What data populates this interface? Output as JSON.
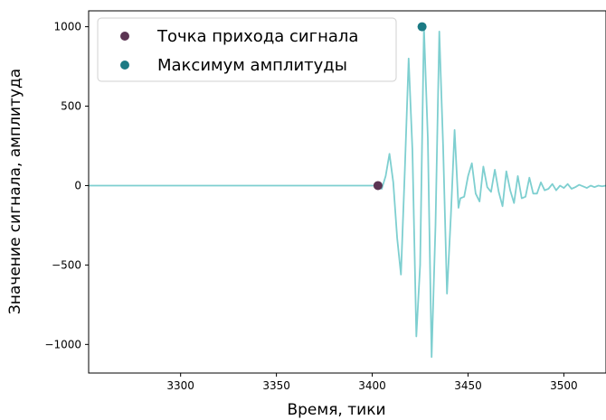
{
  "chart_data": {
    "type": "line",
    "xlabel": "Время, тики",
    "ylabel": "Значение сигнала, амплитуда",
    "xlim": [
      3252,
      3522
    ],
    "ylim": [
      -1180,
      1100
    ],
    "xticks": [
      3300,
      3350,
      3400,
      3450,
      3500
    ],
    "yticks": [
      -1000,
      -500,
      0,
      500,
      1000
    ],
    "ytick_labels": [
      "−1000",
      "−500",
      "0",
      "500",
      "1000"
    ],
    "grid": false,
    "legend_position": "top-left",
    "series": [
      {
        "kind": "line",
        "color": "#7ecfd0",
        "x": [
          3252,
          3400,
          3403,
          3405,
          3407,
          3409,
          3411,
          3413,
          3415,
          3417,
          3419,
          3421,
          3423,
          3425,
          3427,
          3429,
          3431,
          3433,
          3435,
          3437,
          3439,
          3441,
          3443,
          3445,
          3446,
          3448,
          3450,
          3452,
          3454,
          3456,
          3458,
          3460,
          3462,
          3464,
          3466,
          3468,
          3470,
          3472,
          3474,
          3476,
          3478,
          3480,
          3482,
          3484,
          3486,
          3488,
          3490,
          3492,
          3494,
          3496,
          3498,
          3500,
          3502,
          3504,
          3506,
          3508,
          3510,
          3512,
          3514,
          3516,
          3518,
          3520,
          3522
        ],
        "y": [
          0,
          0,
          0,
          -20,
          60,
          200,
          20,
          -330,
          -560,
          100,
          800,
          220,
          -950,
          -500,
          1000,
          300,
          -1080,
          -250,
          970,
          250,
          -680,
          -200,
          350,
          -140,
          -80,
          -70,
          60,
          140,
          -50,
          -100,
          120,
          -10,
          -40,
          100,
          -40,
          -130,
          90,
          -30,
          -110,
          60,
          -80,
          -70,
          50,
          -50,
          -50,
          20,
          -30,
          -20,
          10,
          -30,
          0,
          -15,
          10,
          -20,
          -10,
          5,
          -5,
          -15,
          0,
          -10,
          0,
          -5,
          0
        ]
      }
    ],
    "markers": [
      {
        "name": "Точка прихода сигнала",
        "x": 3403,
        "y": 0,
        "color": "#5b3553"
      },
      {
        "name": "Максимум амплитуды",
        "x": 3426,
        "y": 1000,
        "color": "#1b7a84"
      }
    ]
  }
}
